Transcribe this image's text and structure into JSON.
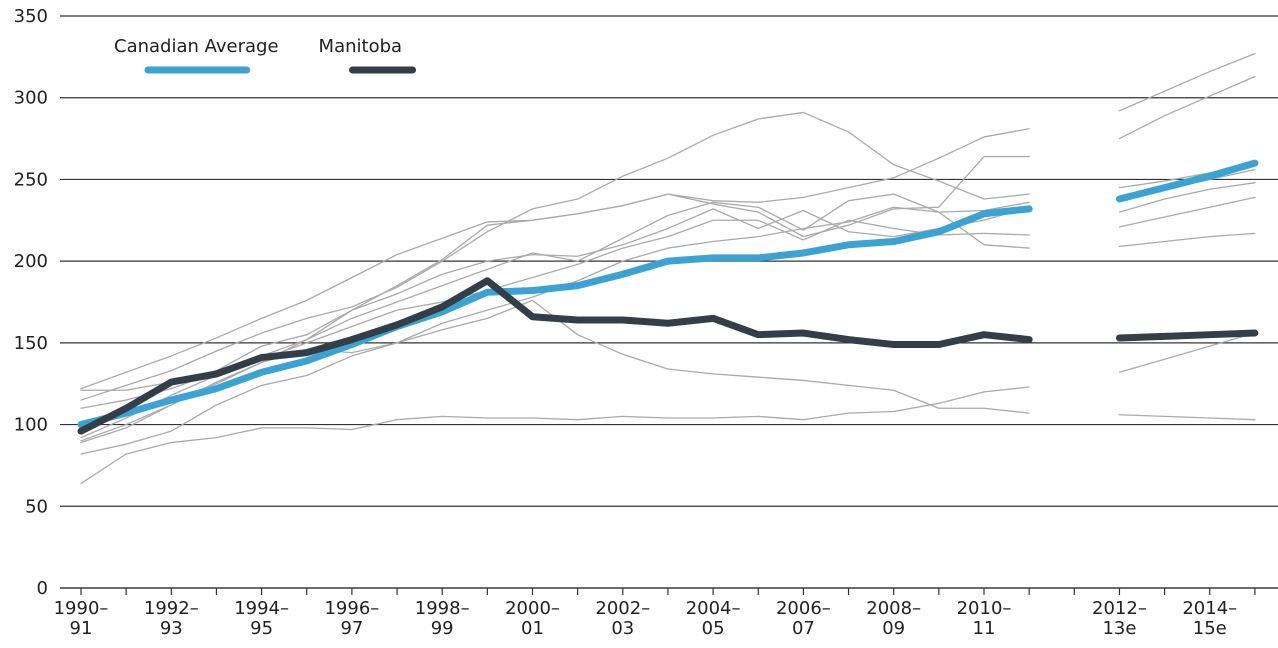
{
  "chart_data": {
    "type": "line",
    "categories": [
      "1990–91",
      null,
      "1992–93",
      null,
      "1994–95",
      null,
      "1996–97",
      null,
      "1998–99",
      null,
      "2000–01",
      null,
      "2002–03",
      null,
      "2004–05",
      null,
      "2006–07",
      null,
      "2008–09",
      null,
      "2010–11",
      null,
      null,
      "2012–13e",
      null,
      "2014–15e",
      null
    ],
    "ylim": [
      0,
      350
    ],
    "yticks": [
      0,
      50,
      100,
      150,
      200,
      250,
      300,
      350
    ],
    "grid": true,
    "legend": "top-left",
    "series": [
      {
        "color": "#aaaaaa",
        "values": [
          122,
          132,
          142,
          153,
          165,
          176,
          190,
          204,
          214,
          224,
          225,
          229,
          234,
          241,
          237,
          236,
          239,
          245,
          251,
          263,
          276,
          281,
          null,
          292,
          304,
          316,
          327
        ]
      },
      {
        "color": "#aaaaaa",
        "values": [
          115,
          124,
          133,
          145,
          156,
          165,
          172,
          184,
          200,
          218,
          232,
          238,
          252,
          263,
          277,
          287,
          291,
          279,
          259,
          249,
          238,
          241,
          null,
          275,
          289,
          301,
          313
        ]
      },
      {
        "color": "#aaaaaa",
        "values": [
          121,
          121,
          126,
          133,
          148,
          155,
          170,
          185,
          201,
          222,
          225,
          229,
          234,
          241,
          235,
          230,
          215,
          222,
          232,
          233,
          264,
          264,
          null,
          245,
          249,
          254,
          259
        ]
      },
      {
        "color": "#aaaaaa",
        "values": [
          110,
          115,
          122,
          132,
          142,
          152,
          165,
          175,
          185,
          195,
          205,
          200,
          214,
          228,
          236,
          233,
          219,
          237,
          241,
          230,
          231,
          236,
          null,
          238,
          244,
          250,
          256
        ]
      },
      {
        "color": "#aaaaaa",
        "values": [
          90,
          100,
          112,
          125,
          138,
          152,
          170,
          180,
          192,
          200,
          204,
          203,
          210,
          220,
          232,
          220,
          231,
          218,
          215,
          220,
          225,
          233,
          null,
          230,
          238,
          244,
          248
        ]
      },
      {
        "color": "#aaaaaa",
        "values": [
          92,
          104,
          118,
          130,
          140,
          150,
          160,
          170,
          175,
          182,
          190,
          198,
          208,
          215,
          225,
          225,
          213,
          225,
          220,
          216,
          217,
          216,
          null,
          221,
          227,
          233,
          239
        ]
      },
      {
        "color": "#aaaaaa",
        "values": [
          82,
          88,
          96,
          112,
          124,
          130,
          142,
          150,
          162,
          170,
          178,
          188,
          200,
          208,
          212,
          215,
          220,
          224,
          233,
          230,
          210,
          208,
          null,
          209,
          212,
          215,
          217
        ]
      },
      {
        "color": "#aaaaaa",
        "values": [
          64,
          82,
          89,
          92,
          98,
          98,
          97,
          103,
          105,
          104,
          104,
          103,
          105,
          104,
          104,
          105,
          103,
          107,
          108,
          113,
          120,
          123,
          null,
          132,
          140,
          148,
          156
        ]
      },
      {
        "color": "#aaaaaa",
        "values": [
          89,
          98,
          112,
          126,
          138,
          146,
          144,
          150,
          158,
          165,
          176,
          155,
          143,
          134,
          131,
          129,
          127,
          124,
          121,
          110,
          110,
          107,
          null,
          106,
          105,
          104,
          103
        ]
      },
      {
        "name": "Canadian Average",
        "color": "#3ba3d4",
        "values": [
          100,
          107,
          115,
          122,
          132,
          139,
          149,
          160,
          169,
          181,
          182,
          185,
          192,
          200,
          202,
          202,
          205,
          210,
          212,
          218,
          229,
          232,
          null,
          238,
          245,
          252,
          260
        ]
      },
      {
        "name": "Manitoba",
        "color": "#333f48",
        "values": [
          96,
          110,
          126,
          131,
          141,
          144,
          152,
          161,
          172,
          188,
          166,
          164,
          164,
          162,
          165,
          155,
          156,
          152,
          149,
          149,
          155,
          152,
          null,
          153,
          154,
          155,
          156
        ]
      }
    ]
  }
}
